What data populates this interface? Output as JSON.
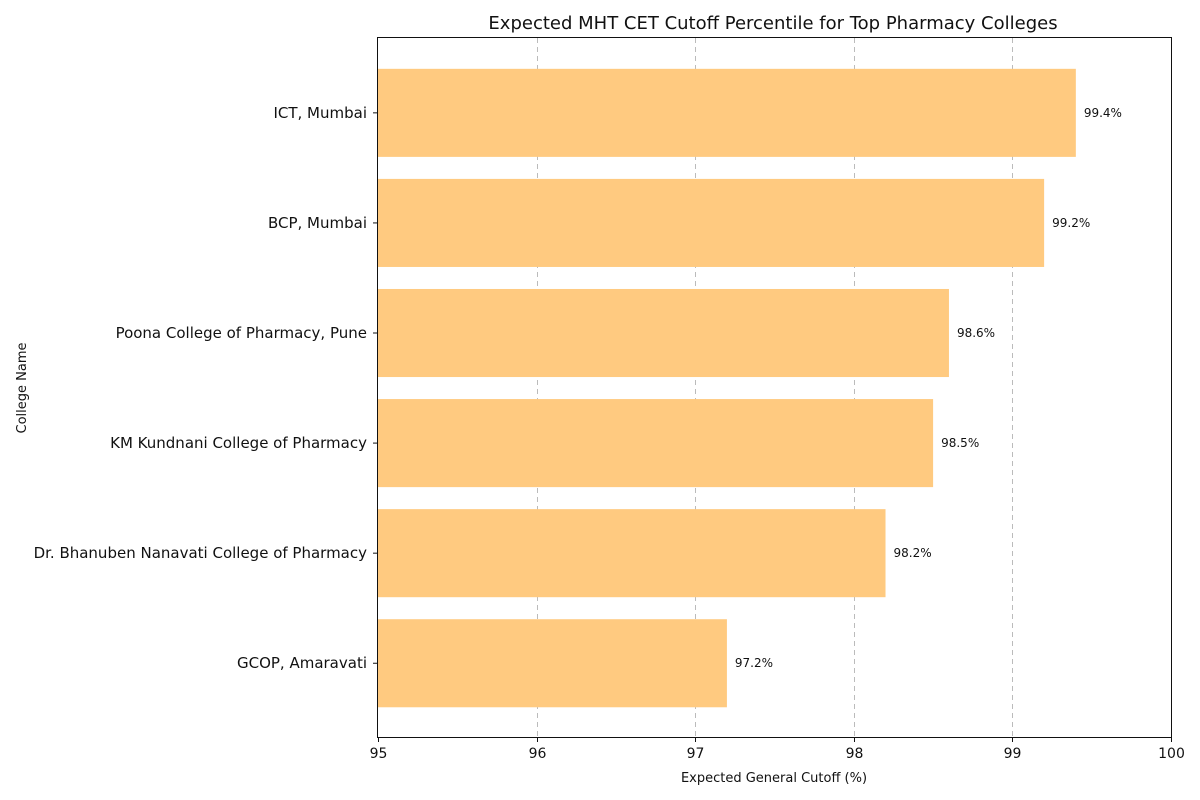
{
  "chart_data": {
    "type": "bar",
    "orientation": "horizontal",
    "title": "Expected MHT CET Cutoff Percentile for Top Pharmacy Colleges",
    "xlabel": "Expected General Cutoff (%)",
    "ylabel": "College Name",
    "xlim": [
      95,
      100
    ],
    "xticks": [
      95,
      96,
      97,
      98,
      99,
      100
    ],
    "grid": "x-dashed",
    "bar_color": "#FFCA80",
    "categories": [
      "ICT, Mumbai",
      "BCP, Mumbai",
      "Poona College of Pharmacy, Pune",
      "KM Kundnani College of Pharmacy",
      "Dr. Bhanuben Nanavati College of Pharmacy",
      "GCOP, Amaravati"
    ],
    "values": [
      99.4,
      99.2,
      98.6,
      98.5,
      98.2,
      97.2
    ],
    "data_labels": [
      "99.4%",
      "99.2%",
      "98.6%",
      "98.5%",
      "98.2%",
      "97.2%"
    ]
  }
}
